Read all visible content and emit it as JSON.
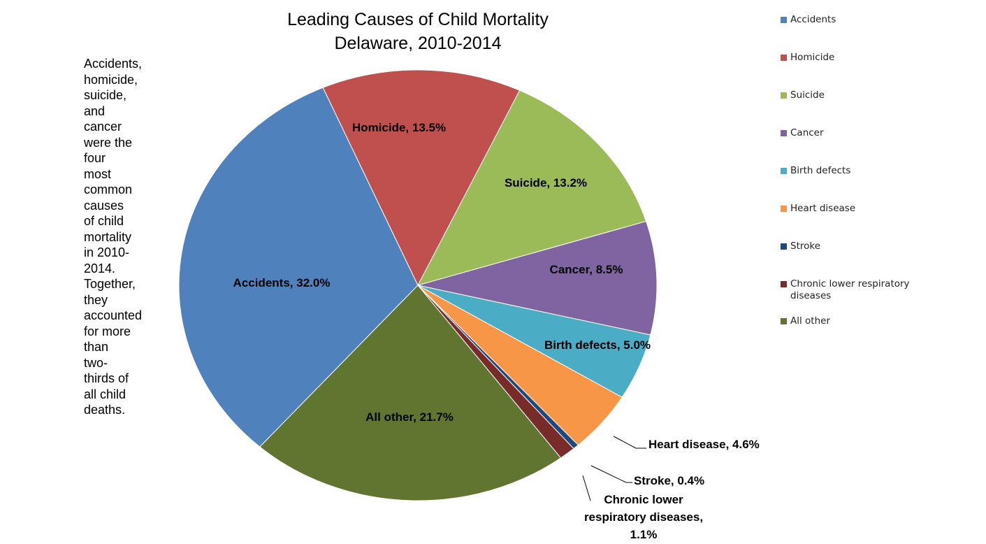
{
  "chart_data": {
    "type": "pie",
    "title": [
      "Leading Causes of Child Mortality",
      "Delaware, 2010-2014"
    ],
    "description": "Accidents, homicide, suicide, and cancer were the four most common causes of child mortality in 2010-2014. Together, they accounted for more than two-thirds of all child deaths.",
    "categories": [
      "Accidents",
      "Homicide",
      "Suicide",
      "Cancer",
      "Birth defects",
      "Heart disease",
      "Stroke",
      "Chronic lower respiratory diseases",
      "All other"
    ],
    "values": [
      32.0,
      13.5,
      13.2,
      8.5,
      5.0,
      4.6,
      0.4,
      1.1,
      21.7
    ],
    "value_labels": [
      "Accidents, 32.0%",
      "Homicide, 13.5%",
      "Suicide, 13.2%",
      "Cancer, 8.5%",
      "Birth defects, 5.0%",
      "Heart disease, 4.6%",
      "Stroke, 0.4%",
      "Chronic lower\nrespiratory diseases,\n1.1%",
      "All other, 21.7%"
    ],
    "colors": [
      "#4f81bd",
      "#c0504d",
      "#9bbb59",
      "#8064a2",
      "#4bacc6",
      "#f79646",
      "#1f497d",
      "#772c2a",
      "#5f7530"
    ],
    "legend": "right"
  }
}
